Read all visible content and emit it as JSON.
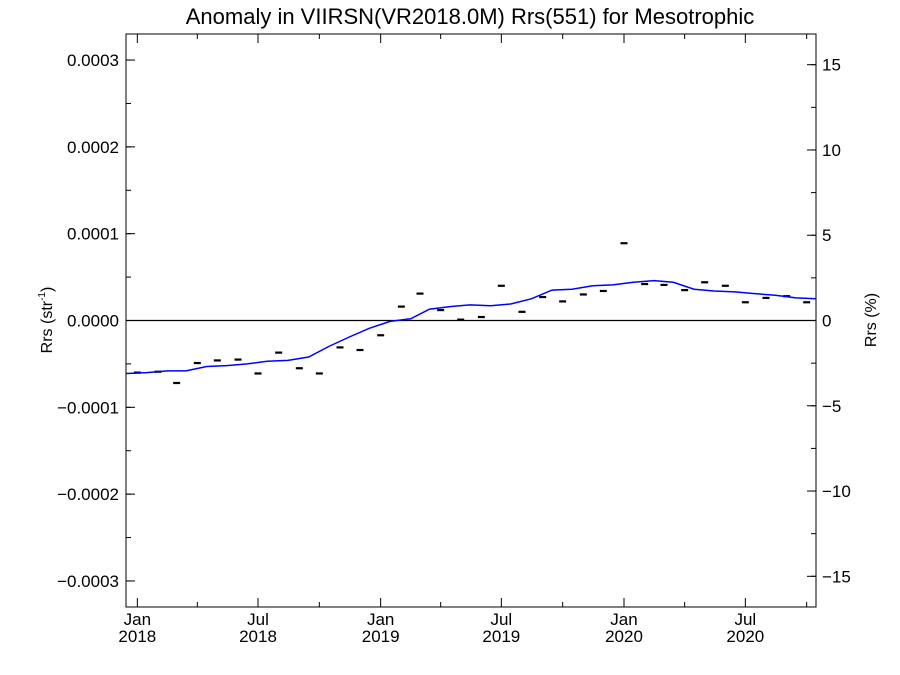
{
  "chart_data": {
    "type": "line",
    "title": "Anomaly in VIIRSN(VR2018.0M) Rrs(551) for Mesotrophic",
    "ylabel": {
      "prefix": "Rrs (str",
      "superscript": "-1",
      "suffix": ")"
    },
    "ylabel_right": "Rrs (%)",
    "xlim": [
      "2017-12-15",
      "2020-10-15"
    ],
    "ylim": [
      -0.00033,
      0.00033
    ],
    "ylim_right": [
      -16.8,
      16.8
    ],
    "x_ticks": [
      {
        "date": "2018-01-01",
        "label_top": "Jan",
        "label_bottom": "2018"
      },
      {
        "date": "2018-07-01",
        "label_top": "Jul",
        "label_bottom": "2018"
      },
      {
        "date": "2019-01-01",
        "label_top": "Jan",
        "label_bottom": "2019"
      },
      {
        "date": "2019-07-01",
        "label_top": "Jul",
        "label_bottom": "2019"
      },
      {
        "date": "2020-01-01",
        "label_top": "Jan",
        "label_bottom": "2020"
      },
      {
        "date": "2020-07-01",
        "label_top": "Jul",
        "label_bottom": "2020"
      }
    ],
    "y_ticks": [
      {
        "value": -0.0003,
        "label": "−0.0003"
      },
      {
        "value": -0.0002,
        "label": "−0.0002"
      },
      {
        "value": -0.0001,
        "label": "−0.0001"
      },
      {
        "value": 0,
        "label": "0.0000"
      },
      {
        "value": 0.0001,
        "label": "0.0001"
      },
      {
        "value": 0.0002,
        "label": "0.0002"
      },
      {
        "value": 0.0003,
        "label": "0.0003"
      }
    ],
    "y_ticks_right": [
      {
        "value": -15,
        "label": "−15"
      },
      {
        "value": -10,
        "label": "−10"
      },
      {
        "value": -5,
        "label": "−5"
      },
      {
        "value": 0,
        "label": "0"
      },
      {
        "value": 5,
        "label": "5"
      },
      {
        "value": 10,
        "label": "10"
      },
      {
        "value": 15,
        "label": "15"
      }
    ],
    "grid": false,
    "zero_line": true,
    "series": [
      {
        "style": "markers",
        "color": "#000000",
        "points": [
          {
            "x": "2018-01-01",
            "y": -6e-05
          },
          {
            "x": "2018-02-01",
            "y": -5.9e-05
          },
          {
            "x": "2018-03-01",
            "y": -7.2e-05
          },
          {
            "x": "2018-04-01",
            "y": -4.9e-05
          },
          {
            "x": "2018-05-01",
            "y": -4.6e-05
          },
          {
            "x": "2018-06-01",
            "y": -4.5e-05
          },
          {
            "x": "2018-07-01",
            "y": -6.1e-05
          },
          {
            "x": "2018-08-01",
            "y": -3.7e-05
          },
          {
            "x": "2018-09-01",
            "y": -5.5e-05
          },
          {
            "x": "2018-10-01",
            "y": -6.1e-05
          },
          {
            "x": "2018-11-01",
            "y": -3.1e-05
          },
          {
            "x": "2018-12-01",
            "y": -3.4e-05
          },
          {
            "x": "2019-01-01",
            "y": -1.7e-05
          },
          {
            "x": "2019-02-01",
            "y": 1.6e-05
          },
          {
            "x": "2019-03-01",
            "y": 3.1e-05
          },
          {
            "x": "2019-04-01",
            "y": 1.2e-05
          },
          {
            "x": "2019-05-01",
            "y": 1e-06
          },
          {
            "x": "2019-06-01",
            "y": 4e-06
          },
          {
            "x": "2019-07-01",
            "y": 4e-05
          },
          {
            "x": "2019-08-01",
            "y": 1e-05
          },
          {
            "x": "2019-09-01",
            "y": 2.7e-05
          },
          {
            "x": "2019-10-01",
            "y": 2.2e-05
          },
          {
            "x": "2019-11-01",
            "y": 3e-05
          },
          {
            "x": "2019-12-01",
            "y": 3.4e-05
          },
          {
            "x": "2020-01-01",
            "y": 8.9e-05
          },
          {
            "x": "2020-02-01",
            "y": 4.2e-05
          },
          {
            "x": "2020-03-01",
            "y": 4.1e-05
          },
          {
            "x": "2020-04-01",
            "y": 3.5e-05
          },
          {
            "x": "2020-05-01",
            "y": 4.4e-05
          },
          {
            "x": "2020-06-01",
            "y": 4e-05
          },
          {
            "x": "2020-07-01",
            "y": 2.1e-05
          },
          {
            "x": "2020-08-01",
            "y": 2.6e-05
          },
          {
            "x": "2020-09-01",
            "y": 2.8e-05
          },
          {
            "x": "2020-10-01",
            "y": 2.1e-05
          }
        ]
      },
      {
        "style": "line",
        "color": "#0000ff",
        "points": [
          {
            "x": "2017-12-15",
            "y": -6.1e-05
          },
          {
            "x": "2018-01-15",
            "y": -6e-05
          },
          {
            "x": "2018-02-15",
            "y": -5.8e-05
          },
          {
            "x": "2018-03-15",
            "y": -5.8e-05
          },
          {
            "x": "2018-04-15",
            "y": -5.3e-05
          },
          {
            "x": "2018-05-15",
            "y": -5.2e-05
          },
          {
            "x": "2018-06-15",
            "y": -5e-05
          },
          {
            "x": "2018-07-15",
            "y": -4.7e-05
          },
          {
            "x": "2018-08-15",
            "y": -4.6e-05
          },
          {
            "x": "2018-09-15",
            "y": -4.2e-05
          },
          {
            "x": "2018-10-15",
            "y": -3e-05
          },
          {
            "x": "2018-11-15",
            "y": -1.9e-05
          },
          {
            "x": "2018-12-15",
            "y": -9e-06
          },
          {
            "x": "2019-01-15",
            "y": -1e-06
          },
          {
            "x": "2019-02-15",
            "y": 2e-06
          },
          {
            "x": "2019-03-15",
            "y": 1.3e-05
          },
          {
            "x": "2019-04-15",
            "y": 1.6e-05
          },
          {
            "x": "2019-05-15",
            "y": 1.8e-05
          },
          {
            "x": "2019-06-15",
            "y": 1.7e-05
          },
          {
            "x": "2019-07-15",
            "y": 1.9e-05
          },
          {
            "x": "2019-08-15",
            "y": 2.5e-05
          },
          {
            "x": "2019-09-15",
            "y": 3.5e-05
          },
          {
            "x": "2019-10-15",
            "y": 3.6e-05
          },
          {
            "x": "2019-11-15",
            "y": 4e-05
          },
          {
            "x": "2019-12-15",
            "y": 4.1e-05
          },
          {
            "x": "2020-01-15",
            "y": 4.4e-05
          },
          {
            "x": "2020-02-15",
            "y": 4.6e-05
          },
          {
            "x": "2020-03-15",
            "y": 4.4e-05
          },
          {
            "x": "2020-04-15",
            "y": 3.6e-05
          },
          {
            "x": "2020-05-15",
            "y": 3.4e-05
          },
          {
            "x": "2020-06-15",
            "y": 3.3e-05
          },
          {
            "x": "2020-07-15",
            "y": 3.1e-05
          },
          {
            "x": "2020-08-15",
            "y": 2.9e-05
          },
          {
            "x": "2020-09-15",
            "y": 2.6e-05
          },
          {
            "x": "2020-10-15",
            "y": 2.5e-05
          }
        ]
      }
    ]
  }
}
